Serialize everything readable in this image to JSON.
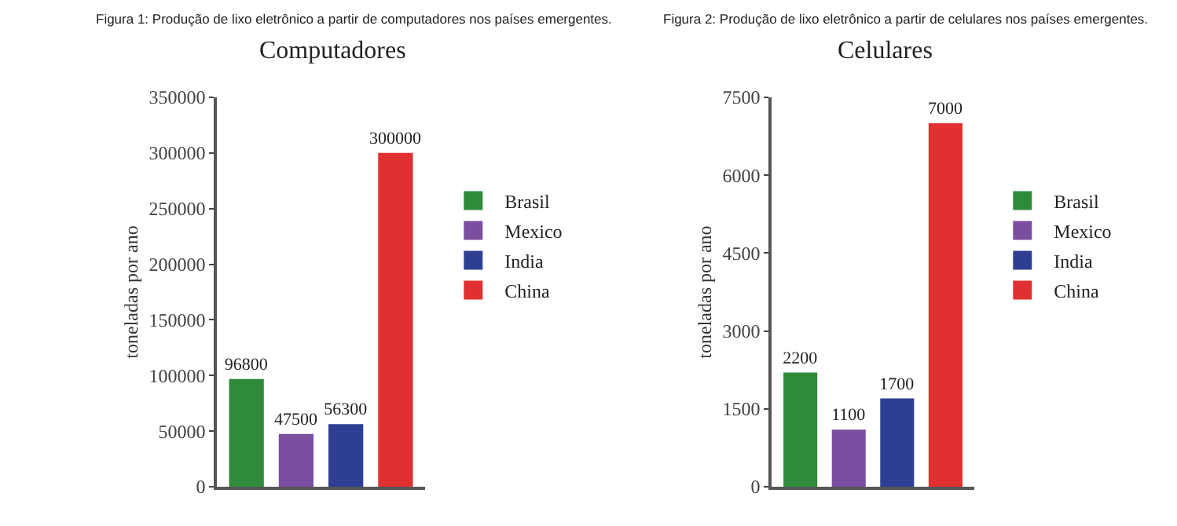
{
  "chart_data": [
    {
      "type": "bar",
      "title": "Figura 1: Produção de lixo eletrônico a partir de computadores nos países emergentes.",
      "subtitle": "Computadores",
      "ylabel": "toneladas por ano",
      "categories": [
        null,
        null,
        null,
        null
      ],
      "series": [
        {
          "name": "Brasil",
          "color": "#2e8b3a",
          "values": [
            96800,
            null,
            null,
            null
          ]
        },
        {
          "name": "Mexico",
          "color": "#7b4fa0",
          "values": [
            null,
            47500,
            null,
            null
          ]
        },
        {
          "name": "India",
          "color": "#2e3f93",
          "values": [
            null,
            null,
            56300,
            null
          ]
        },
        {
          "name": "China",
          "color": "#e03030",
          "values": [
            null,
            null,
            null,
            300000
          ]
        }
      ],
      "ylim": [
        0,
        350000
      ],
      "yticks": [
        0,
        50000,
        100000,
        150000,
        200000,
        250000,
        300000,
        350000
      ],
      "data_labels": true,
      "legend": "right",
      "tick_labels": "y"
    },
    {
      "type": "bar",
      "title": "Figura 2: Produção de lixo eletrônico a partir de celulares nos países emergentes.",
      "subtitle": "Celulares",
      "ylabel": "toneladas por ano",
      "categories": [
        null,
        null,
        null,
        null
      ],
      "series": [
        {
          "name": "Brasil",
          "color": "#2e8b3a",
          "values": [
            2200,
            null,
            null,
            null
          ]
        },
        {
          "name": "Mexico",
          "color": "#7b4fa0",
          "values": [
            null,
            1100,
            null,
            null
          ]
        },
        {
          "name": "India",
          "color": "#2e3f93",
          "values": [
            null,
            null,
            1700,
            null
          ]
        },
        {
          "name": "China",
          "color": "#e03030",
          "values": [
            null,
            null,
            null,
            7000
          ]
        }
      ],
      "ylim": [
        0,
        7500
      ],
      "yticks": [
        0,
        1500,
        3000,
        4500,
        6000,
        7500
      ],
      "data_labels": true,
      "legend": "right",
      "tick_labels": "y"
    }
  ]
}
